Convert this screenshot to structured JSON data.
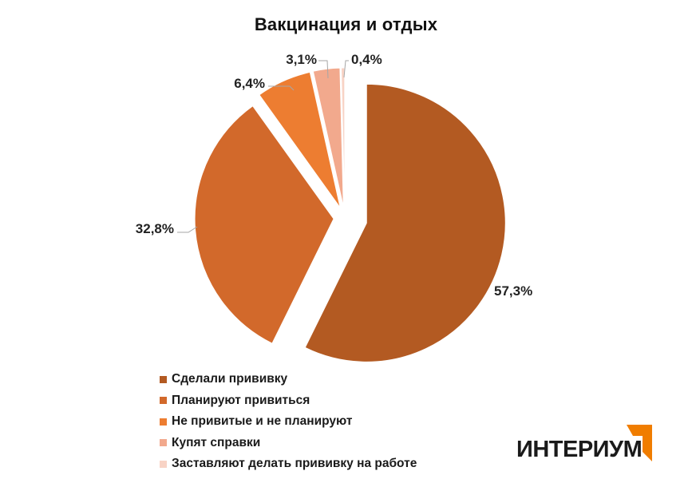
{
  "chart_data": {
    "type": "pie",
    "title": "Вакцинация и отдых",
    "categories": [
      "Сделали прививку",
      "Планируют привиться",
      "Не привитые и не планируют",
      "Купят справки",
      "Заставляют делать прививку на работе"
    ],
    "values": [
      57.3,
      32.8,
      6.4,
      3.1,
      0.4
    ],
    "data_labels": [
      "57,3%",
      "32,8%",
      "6,4%",
      "3,1%",
      "0,4%"
    ],
    "colors": [
      "#B35A22",
      "#D2692B",
      "#ED7D31",
      "#F2A98D",
      "#F8D3C5"
    ],
    "exploded": true,
    "legend_position": "bottom-left"
  },
  "logo": {
    "text": "ИНТЕРИУМ",
    "accent_color": "#F07D00"
  }
}
